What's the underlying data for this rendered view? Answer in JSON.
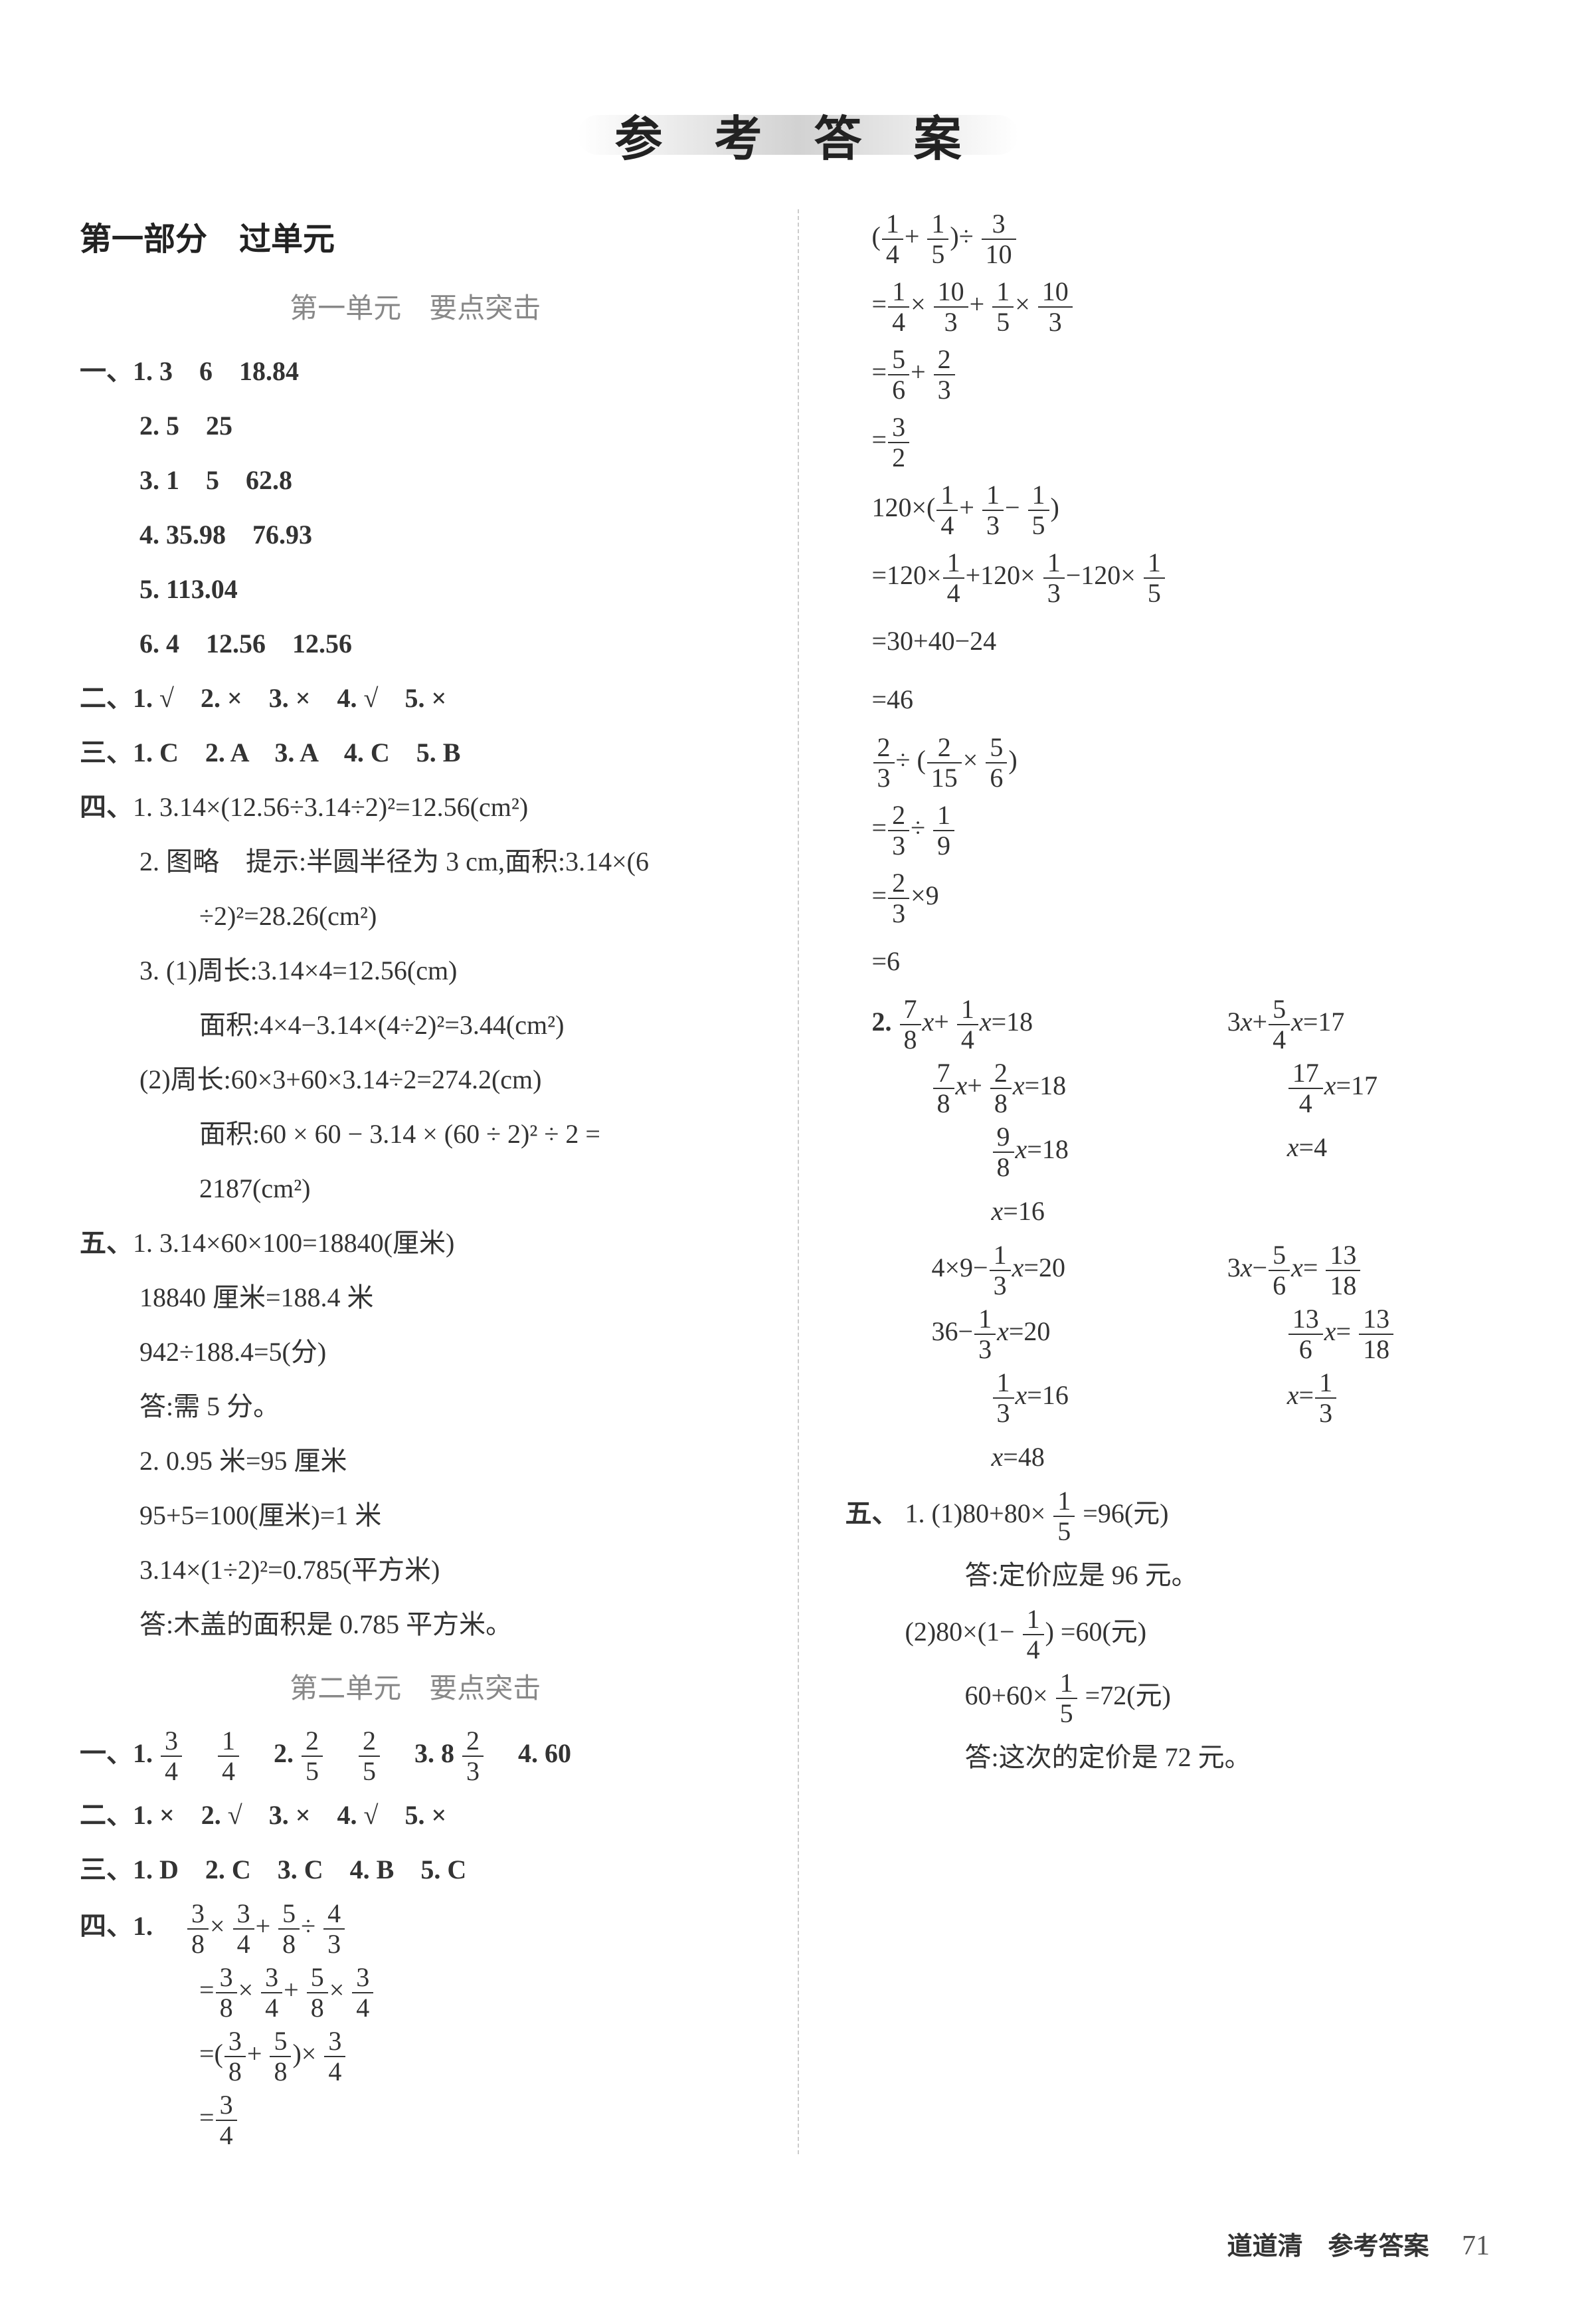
{
  "main_title": "参 考 答 案",
  "left": {
    "part1_header": "第一部分　过单元",
    "unit1_header": "第一单元　要点突击",
    "sec1": {
      "label": "一、",
      "lines": [
        "1. 3　6　18.84",
        "2. 5　25",
        "3. 1　5　62.8",
        "4. 35.98　76.93",
        "5. 113.04",
        "6. 4　12.56　12.56"
      ]
    },
    "sec2": "二、1. √　2. ×　3. ×　4. √　5. ×",
    "sec3": "三、1. C　2. A　3. A　4. C　5. B",
    "sec4": {
      "label": "四、",
      "l1": "1. 3.14×(12.56÷3.14÷2)²=12.56(cm²)",
      "l2a": "2. 图略　提示:半圆半径为 3 cm,面积:3.14×(6",
      "l2b": "÷2)²=28.26(cm²)",
      "l3a": "3. (1)周长:3.14×4=12.56(cm)",
      "l3b": "面积:4×4−3.14×(4÷2)²=3.44(cm²)",
      "l3c": "(2)周长:60×3+60×3.14÷2=274.2(cm)",
      "l3d": "面积:60 × 60 − 3.14 × (60 ÷ 2)² ÷ 2 =",
      "l3e": "2187(cm²)"
    },
    "sec5": {
      "label": "五、",
      "l1a": "1. 3.14×60×100=18840(厘米)",
      "l1b": "18840 厘米=188.4 米",
      "l1c": "942÷188.4=5(分)",
      "l1d": "答:需 5 分。",
      "l2a": "2. 0.95 米=95 厘米",
      "l2b": "95+5=100(厘米)=1 米",
      "l2c": "3.14×(1÷2)²=0.785(平方米)",
      "l2d": "答:木盖的面积是 0.785 平方米。"
    },
    "unit2_header": "第二单元　要点突击",
    "u2_sec1_label": "一、1.",
    "u2_sec1_text1": "　2.",
    "u2_sec1_text2": "　3. 8",
    "u2_sec1_text3": "　4. 60",
    "u2_sec2": "二、1. ×　2. √　3. ×　4. √　5. ×",
    "u2_sec3": "三、1. D　2. C　3. C　4. B　5. C",
    "u2_sec4_label": "四、1."
  },
  "right": {
    "eq_block2_label": "2.",
    "sec5_label": "五、",
    "l1a_prefix": "1. (1)80+80×",
    "l1a_suffix": "=96(元)",
    "l1b": "答:定价应是 96 元。",
    "l2a_prefix": "(2)80×",
    "l2a_suffix": "=60(元)",
    "l2b_prefix": "60+60×",
    "l2b_suffix": "=72(元)",
    "l2c": "答:这次的定价是 72 元。"
  },
  "footer": {
    "text": "道道清　参考答案",
    "page": "71"
  },
  "colors": {
    "text": "#333333",
    "gray": "#888888",
    "bg": "#ffffff"
  },
  "fractions": {
    "3_4": {
      "n": "3",
      "d": "4"
    },
    "1_4": {
      "n": "1",
      "d": "4"
    },
    "2_5": {
      "n": "2",
      "d": "5"
    },
    "2_3": {
      "n": "2",
      "d": "3"
    },
    "3_8": {
      "n": "3",
      "d": "8"
    },
    "5_8": {
      "n": "5",
      "d": "8"
    },
    "4_3": {
      "n": "4",
      "d": "3"
    },
    "1_5": {
      "n": "1",
      "d": "5"
    },
    "3_10": {
      "n": "3",
      "d": "10"
    },
    "10_3": {
      "n": "10",
      "d": "3"
    },
    "5_6": {
      "n": "5",
      "d": "6"
    },
    "3_2": {
      "n": "3",
      "d": "2"
    },
    "1_3": {
      "n": "1",
      "d": "3"
    },
    "2_15": {
      "n": "2",
      "d": "15"
    },
    "1_9": {
      "n": "1",
      "d": "9"
    },
    "7_8": {
      "n": "7",
      "d": "8"
    },
    "2_8": {
      "n": "2",
      "d": "8"
    },
    "9_8": {
      "n": "9",
      "d": "8"
    },
    "5_4": {
      "n": "5",
      "d": "4"
    },
    "17_4": {
      "n": "17",
      "d": "4"
    },
    "13_18": {
      "n": "13",
      "d": "18"
    },
    "13_6": {
      "n": "13",
      "d": "6"
    }
  }
}
